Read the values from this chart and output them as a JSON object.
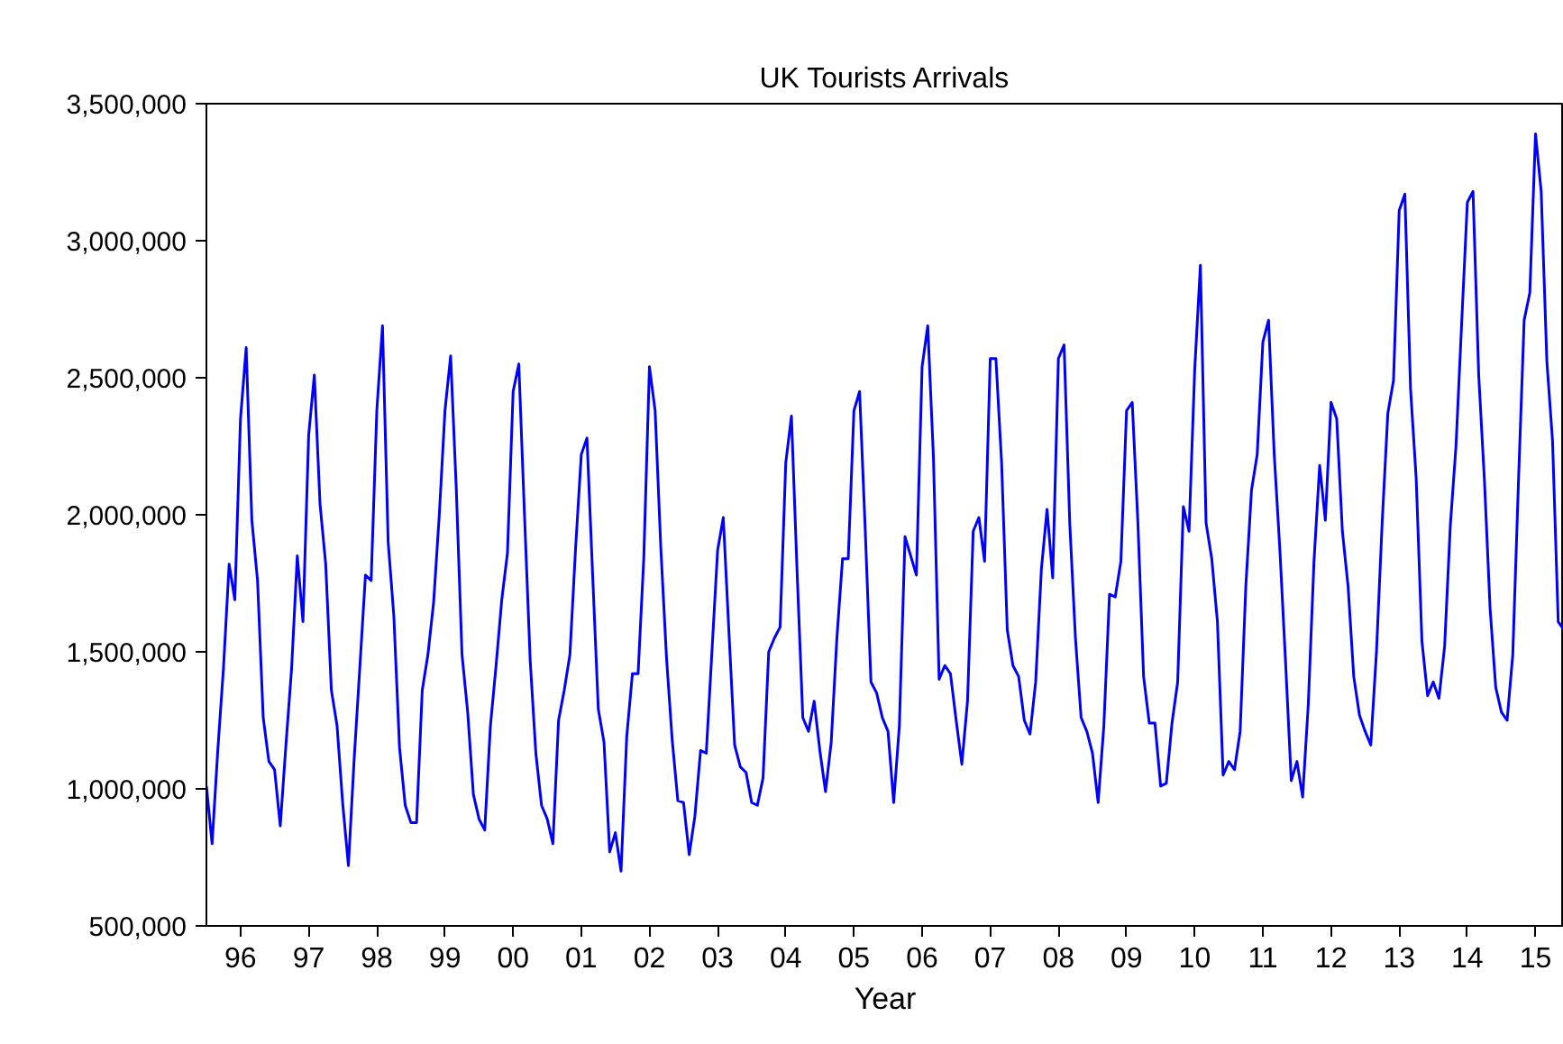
{
  "chart_data": {
    "type": "line",
    "title": "UK Tourists Arrivals",
    "xlabel": "Year",
    "x": [
      "1996-01",
      "1996-02",
      "1996-03",
      "1996-04",
      "1996-05",
      "1996-06",
      "1996-07",
      "1996-08",
      "1996-09",
      "1996-10",
      "1996-11",
      "1996-12",
      "1997-01",
      "1997-02",
      "1997-03",
      "1997-04",
      "1997-05",
      "1997-06",
      "1997-07",
      "1997-08",
      "1997-09",
      "1997-10",
      "1997-11",
      "1997-12",
      "1998-01",
      "1998-02",
      "1998-03",
      "1998-04",
      "1998-05",
      "1998-06",
      "1998-07",
      "1998-08",
      "1998-09",
      "1998-10",
      "1998-11",
      "1998-12",
      "1999-01",
      "1999-02",
      "1999-03",
      "1999-04",
      "1999-05",
      "1999-06",
      "1999-07",
      "1999-08",
      "1999-09",
      "1999-10",
      "1999-11",
      "1999-12",
      "2000-01",
      "2000-02",
      "2000-03",
      "2000-04",
      "2000-05",
      "2000-06",
      "2000-07",
      "2000-08",
      "2000-09",
      "2000-10",
      "2000-11",
      "2000-12",
      "2001-01",
      "2001-02",
      "2001-03",
      "2001-04",
      "2001-05",
      "2001-06",
      "2001-07",
      "2001-08",
      "2001-09",
      "2001-10",
      "2001-11",
      "2001-12",
      "2002-01",
      "2002-02",
      "2002-03",
      "2002-04",
      "2002-05",
      "2002-06",
      "2002-07",
      "2002-08",
      "2002-09",
      "2002-10",
      "2002-11",
      "2002-12",
      "2003-01",
      "2003-02",
      "2003-03",
      "2003-04",
      "2003-05",
      "2003-06",
      "2003-07",
      "2003-08",
      "2003-09",
      "2003-10",
      "2003-11",
      "2003-12",
      "2004-01",
      "2004-02",
      "2004-03",
      "2004-04",
      "2004-05",
      "2004-06",
      "2004-07",
      "2004-08",
      "2004-09",
      "2004-10",
      "2004-11",
      "2004-12",
      "2005-01",
      "2005-02",
      "2005-03",
      "2005-04",
      "2005-05",
      "2005-06",
      "2005-07",
      "2005-08",
      "2005-09",
      "2005-10",
      "2005-11",
      "2005-12",
      "2006-01",
      "2006-02",
      "2006-03",
      "2006-04",
      "2006-05",
      "2006-06",
      "2006-07",
      "2006-08",
      "2006-09",
      "2006-10",
      "2006-11",
      "2006-12",
      "2007-01",
      "2007-02",
      "2007-03",
      "2007-04",
      "2007-05",
      "2007-06",
      "2007-07",
      "2007-08",
      "2007-09",
      "2007-10",
      "2007-11",
      "2007-12",
      "2008-01",
      "2008-02",
      "2008-03",
      "2008-04",
      "2008-05",
      "2008-06",
      "2008-07",
      "2008-08",
      "2008-09",
      "2008-10",
      "2008-11",
      "2008-12",
      "2009-01",
      "2009-02",
      "2009-03",
      "2009-04",
      "2009-05",
      "2009-06",
      "2009-07",
      "2009-08",
      "2009-09",
      "2009-10",
      "2009-11",
      "2009-12",
      "2010-01",
      "2010-02",
      "2010-03",
      "2010-04",
      "2010-05",
      "2010-06",
      "2010-07",
      "2010-08",
      "2010-09",
      "2010-10",
      "2010-11",
      "2010-12",
      "2011-01",
      "2011-02",
      "2011-03",
      "2011-04",
      "2011-05",
      "2011-06",
      "2011-07",
      "2011-08",
      "2011-09",
      "2011-10",
      "2011-11",
      "2011-12",
      "2012-01",
      "2012-02",
      "2012-03",
      "2012-04",
      "2012-05",
      "2012-06",
      "2012-07",
      "2012-08",
      "2012-09",
      "2012-10",
      "2012-11",
      "2012-12",
      "2013-01",
      "2013-02",
      "2013-03",
      "2013-04",
      "2013-05",
      "2013-06",
      "2013-07",
      "2013-08",
      "2013-09",
      "2013-10",
      "2013-11",
      "2013-12",
      "2014-01",
      "2014-02",
      "2014-03",
      "2014-04",
      "2014-05",
      "2014-06",
      "2014-07",
      "2014-08",
      "2014-09",
      "2014-10",
      "2014-11",
      "2014-12",
      "2015-01",
      "2015-02",
      "2015-03",
      "2015-04",
      "2015-05",
      "2015-06",
      "2015-07",
      "2015-08",
      "2015-09",
      "2015-10",
      "2015-11",
      "2015-12"
    ],
    "xlim": [
      "1996-01",
      "2015-12"
    ],
    "xticks": [
      {
        "value": "1996-07",
        "label": "96"
      },
      {
        "value": "1997-07",
        "label": "97"
      },
      {
        "value": "1998-07",
        "label": "98"
      },
      {
        "value": "1999-07",
        "label": "99"
      },
      {
        "value": "2000-07",
        "label": "00"
      },
      {
        "value": "2001-07",
        "label": "01"
      },
      {
        "value": "2002-07",
        "label": "02"
      },
      {
        "value": "2003-07",
        "label": "03"
      },
      {
        "value": "2004-07",
        "label": "04"
      },
      {
        "value": "2005-07",
        "label": "05"
      },
      {
        "value": "2006-07",
        "label": "06"
      },
      {
        "value": "2007-07",
        "label": "07"
      },
      {
        "value": "2008-07",
        "label": "08"
      },
      {
        "value": "2009-07",
        "label": "09"
      },
      {
        "value": "2010-07",
        "label": "10"
      },
      {
        "value": "2011-07",
        "label": "11"
      },
      {
        "value": "2012-07",
        "label": "12"
      },
      {
        "value": "2013-07",
        "label": "13"
      },
      {
        "value": "2014-07",
        "label": "14"
      },
      {
        "value": "2015-07",
        "label": "15"
      }
    ],
    "ylim": [
      500000,
      3500000
    ],
    "yticks": [
      {
        "value": 500000,
        "label": "500,000"
      },
      {
        "value": 1000000,
        "label": "1,000,000"
      },
      {
        "value": 1500000,
        "label": "1,500,000"
      },
      {
        "value": 2000000,
        "label": "2,000,000"
      },
      {
        "value": 2500000,
        "label": "2,500,000"
      },
      {
        "value": 3000000,
        "label": "3,000,000"
      },
      {
        "value": 3500000,
        "label": "3,500,000"
      }
    ],
    "grid": false,
    "line_style": "solid",
    "series": [
      {
        "color": "#0000ff",
        "values": [
          1010000,
          800000,
          1140000,
          1440000,
          1820000,
          1690000,
          2350000,
          2610000,
          1980000,
          1760000,
          1260000,
          1100000,
          1070000,
          865000,
          1160000,
          1440000,
          1850000,
          1610000,
          2290000,
          2510000,
          2040000,
          1820000,
          1360000,
          1230000,
          945000,
          720000,
          1105000,
          1440000,
          1780000,
          1760000,
          2380000,
          2690000,
          1900000,
          1630000,
          1150000,
          940000,
          877000,
          877000,
          1360000,
          1490000,
          1680000,
          2000000,
          2380000,
          2580000,
          2090000,
          1490000,
          1280000,
          980000,
          890000,
          850000,
          1230000,
          1450000,
          1690000,
          1860000,
          2450000,
          2550000,
          2000000,
          1470000,
          1130000,
          940000,
          890000,
          800000,
          1250000,
          1360000,
          1490000,
          1880000,
          2220000,
          2280000,
          1780000,
          1290000,
          1170000,
          770000,
          840000,
          700000,
          1190000,
          1420000,
          1420000,
          1840000,
          2540000,
          2380000,
          1880000,
          1480000,
          1180000,
          957000,
          950000,
          760000,
          900000,
          1140000,
          1130000,
          1500000,
          1870000,
          1990000,
          1570000,
          1160000,
          1080000,
          1060000,
          950000,
          940000,
          1040000,
          1500000,
          1550000,
          1590000,
          2190000,
          2360000,
          1790000,
          1260000,
          1210000,
          1320000,
          1140000,
          990000,
          1170000,
          1550000,
          1840000,
          1840000,
          2380000,
          2450000,
          1940000,
          1390000,
          1350000,
          1260000,
          1210000,
          950000,
          1230000,
          1920000,
          1850000,
          1780000,
          2540000,
          2690000,
          2210000,
          1400000,
          1450000,
          1420000,
          1250000,
          1090000,
          1320000,
          1940000,
          1990000,
          1830000,
          2570000,
          2570000,
          2190000,
          1580000,
          1450000,
          1410000,
          1250000,
          1200000,
          1390000,
          1800000,
          2020000,
          1770000,
          2570000,
          2620000,
          1970000,
          1550000,
          1260000,
          1210000,
          1130000,
          950000,
          1230000,
          1710000,
          1700000,
          1830000,
          2380000,
          2410000,
          1970000,
          1410000,
          1240000,
          1240000,
          1010000,
          1020000,
          1240000,
          1390000,
          2030000,
          1940000,
          2530000,
          2910000,
          1970000,
          1840000,
          1610000,
          1050000,
          1100000,
          1070000,
          1210000,
          1740000,
          2090000,
          2220000,
          2630000,
          2710000,
          2220000,
          1870000,
          1460000,
          1030000,
          1100000,
          970000,
          1310000,
          1830000,
          2180000,
          1980000,
          2410000,
          2350000,
          1940000,
          1740000,
          1410000,
          1270000,
          1210000,
          1160000,
          1500000,
          1970000,
          2370000,
          2490000,
          3110000,
          3170000,
          2460000,
          2130000,
          1540000,
          1340000,
          1390000,
          1330000,
          1520000,
          1960000,
          2250000,
          2700000,
          3140000,
          3180000,
          2510000,
          2130000,
          1660000,
          1370000,
          1280000,
          1250000,
          1490000,
          2120000,
          2710000,
          2810000,
          3390000,
          3180000,
          2560000,
          2270000,
          1610000,
          1580000
        ]
      }
    ]
  }
}
